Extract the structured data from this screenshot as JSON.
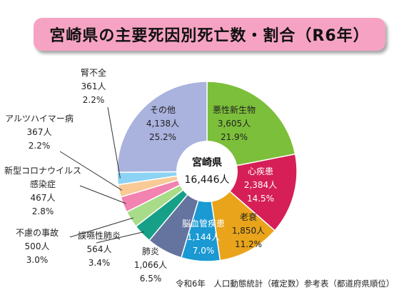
{
  "title": "宮崎県の主要死因別死亡数・割合（R6年）",
  "center_label": {
    "title": "宮崎県",
    "total": "16,446人"
  },
  "source_note": "令和6年　人口動態統計（確定数）参考表（都道府県順位）",
  "chart_data": {
    "type": "pie",
    "variant": "donut",
    "title": "宮崎県の主要死因別死亡数・割合（R6年）",
    "total": 16446,
    "slices": [
      {
        "name": "悪性新生物",
        "count": 3605,
        "count_label": "3,605人",
        "percent": 21.9,
        "percent_label": "21.9%",
        "color": "#7cbf3a"
      },
      {
        "name": "心疾患",
        "count": 2384,
        "count_label": "2,384人",
        "percent": 14.5,
        "percent_label": "14.5%",
        "color": "#d61f57"
      },
      {
        "name": "老衰",
        "count": 1850,
        "count_label": "1,850人",
        "percent": 11.2,
        "percent_label": "11.2%",
        "color": "#e9a41b"
      },
      {
        "name": "脳血管疾患",
        "count": 1144,
        "count_label": "1,144人",
        "percent": 7.0,
        "percent_label": "7.0%",
        "color": "#1a99d3"
      },
      {
        "name": "肺炎",
        "count": 1066,
        "count_label": "1,066人",
        "percent": 6.5,
        "percent_label": "6.5%",
        "color": "#65739f"
      },
      {
        "name": "誤嚥性肺炎",
        "count": 564,
        "count_label": "564人",
        "percent": 3.4,
        "percent_label": "3.4%",
        "color": "#17a088"
      },
      {
        "name": "不慮の事故",
        "count": 500,
        "count_label": "500人",
        "percent": 3.0,
        "percent_label": "3.0%",
        "color": "#a8dc88"
      },
      {
        "name": "新型コロナウイルス感染症",
        "name_lines": [
          "新型コロナウイルス",
          "感染症"
        ],
        "count": 467,
        "count_label": "467人",
        "percent": 2.8,
        "percent_label": "2.8%",
        "color": "#f282b0"
      },
      {
        "name": "アルツハイマー病",
        "count": 367,
        "count_label": "367人",
        "percent": 2.2,
        "percent_label": "2.2%",
        "color": "#f9c996"
      },
      {
        "name": "腎不全",
        "count": 361,
        "count_label": "361人",
        "percent": 2.2,
        "percent_label": "2.2%",
        "color": "#8dd3f3"
      },
      {
        "name": "その他",
        "count": 4138,
        "count_label": "4,138人",
        "percent": 25.2,
        "percent_label": "25.2%",
        "color": "#aab2de"
      }
    ]
  }
}
